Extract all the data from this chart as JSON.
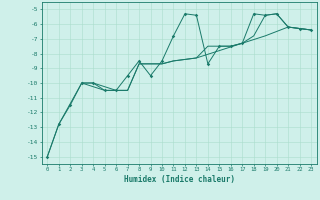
{
  "xlabel": "Humidex (Indice chaleur)",
  "background_color": "#cff0ea",
  "grid_color": "#aaddcc",
  "line_color": "#1a7a6a",
  "xlim": [
    -0.5,
    23.5
  ],
  "ylim": [
    -15.5,
    -4.5
  ],
  "yticks": [
    -5,
    -6,
    -7,
    -8,
    -9,
    -10,
    -11,
    -12,
    -13,
    -14,
    -15
  ],
  "xticks": [
    0,
    1,
    2,
    3,
    4,
    5,
    6,
    7,
    8,
    9,
    10,
    11,
    12,
    13,
    14,
    15,
    16,
    17,
    18,
    19,
    20,
    21,
    22,
    23
  ],
  "series1": [
    [
      0,
      -15.0
    ],
    [
      1,
      -12.8
    ],
    [
      2,
      -11.5
    ],
    [
      3,
      -10.0
    ],
    [
      4,
      -10.0
    ],
    [
      5,
      -10.5
    ],
    [
      6,
      -10.5
    ],
    [
      7,
      -9.5
    ],
    [
      8,
      -8.5
    ],
    [
      9,
      -9.5
    ],
    [
      10,
      -8.5
    ],
    [
      11,
      -6.8
    ],
    [
      12,
      -5.3
    ],
    [
      13,
      -5.4
    ],
    [
      14,
      -8.7
    ],
    [
      15,
      -7.5
    ],
    [
      16,
      -7.5
    ],
    [
      17,
      -7.3
    ],
    [
      18,
      -5.3
    ],
    [
      19,
      -5.4
    ],
    [
      20,
      -5.3
    ],
    [
      21,
      -6.2
    ],
    [
      22,
      -6.3
    ],
    [
      23,
      -6.4
    ]
  ],
  "series2": [
    [
      0,
      -15.0
    ],
    [
      1,
      -12.8
    ],
    [
      3,
      -10.0
    ],
    [
      5,
      -10.5
    ],
    [
      7,
      -10.5
    ],
    [
      8,
      -8.7
    ],
    [
      10,
      -8.7
    ],
    [
      11,
      -8.5
    ],
    [
      13,
      -8.3
    ],
    [
      15,
      -7.8
    ],
    [
      17,
      -7.3
    ],
    [
      19,
      -6.8
    ],
    [
      20,
      -6.5
    ],
    [
      21,
      -6.2
    ],
    [
      22,
      -6.3
    ],
    [
      23,
      -6.4
    ]
  ],
  "series3": [
    [
      3,
      -10.0
    ],
    [
      4,
      -10.0
    ],
    [
      6,
      -10.5
    ],
    [
      7,
      -10.5
    ],
    [
      8,
      -8.7
    ],
    [
      10,
      -8.7
    ],
    [
      11,
      -8.5
    ],
    [
      13,
      -8.3
    ],
    [
      14,
      -7.5
    ],
    [
      16,
      -7.5
    ],
    [
      17,
      -7.3
    ],
    [
      18,
      -6.8
    ],
    [
      19,
      -5.4
    ],
    [
      20,
      -5.3
    ],
    [
      21,
      -6.2
    ],
    [
      22,
      -6.3
    ],
    [
      23,
      -6.4
    ]
  ]
}
